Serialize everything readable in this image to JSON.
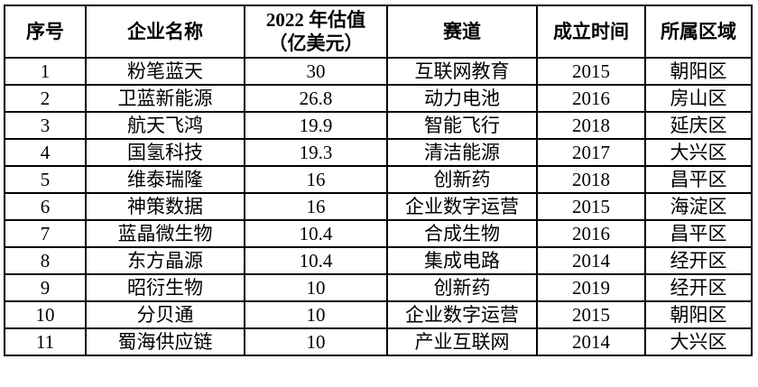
{
  "table": {
    "columns": [
      "序号",
      "企业名称",
      "2022 年估值\n（亿美元）",
      "赛道",
      "成立时间",
      "所属区域"
    ],
    "fields": [
      "index",
      "name",
      "valuation",
      "track",
      "founded",
      "district"
    ],
    "rows": [
      {
        "index": "1",
        "name": "粉笔蓝天",
        "valuation": "30",
        "track": "互联网教育",
        "founded": "2015",
        "district": "朝阳区"
      },
      {
        "index": "2",
        "name": "卫蓝新能源",
        "valuation": "26.8",
        "track": "动力电池",
        "founded": "2016",
        "district": "房山区"
      },
      {
        "index": "3",
        "name": "航天飞鸿",
        "valuation": "19.9",
        "track": "智能飞行",
        "founded": "2018",
        "district": "延庆区"
      },
      {
        "index": "4",
        "name": "国氢科技",
        "valuation": "19.3",
        "track": "清洁能源",
        "founded": "2017",
        "district": "大兴区"
      },
      {
        "index": "5",
        "name": "维泰瑞隆",
        "valuation": "16",
        "track": "创新药",
        "founded": "2018",
        "district": "昌平区"
      },
      {
        "index": "6",
        "name": "神策数据",
        "valuation": "16",
        "track": "企业数字运营",
        "founded": "2015",
        "district": "海淀区"
      },
      {
        "index": "7",
        "name": "蓝晶微生物",
        "valuation": "10.4",
        "track": "合成生物",
        "founded": "2016",
        "district": "昌平区"
      },
      {
        "index": "8",
        "name": "东方晶源",
        "valuation": "10.4",
        "track": "集成电路",
        "founded": "2014",
        "district": "经开区"
      },
      {
        "index": "9",
        "name": "昭衍生物",
        "valuation": "10",
        "track": "创新药",
        "founded": "2019",
        "district": "经开区"
      },
      {
        "index": "10",
        "name": "分贝通",
        "valuation": "10",
        "track": "企业数字运营",
        "founded": "2015",
        "district": "朝阳区"
      },
      {
        "index": "11",
        "name": "蜀海供应链",
        "valuation": "10",
        "track": "产业互联网",
        "founded": "2014",
        "district": "大兴区"
      }
    ],
    "border_color": "#000000",
    "text_color": "#000000",
    "background_color": "#ffffff"
  }
}
